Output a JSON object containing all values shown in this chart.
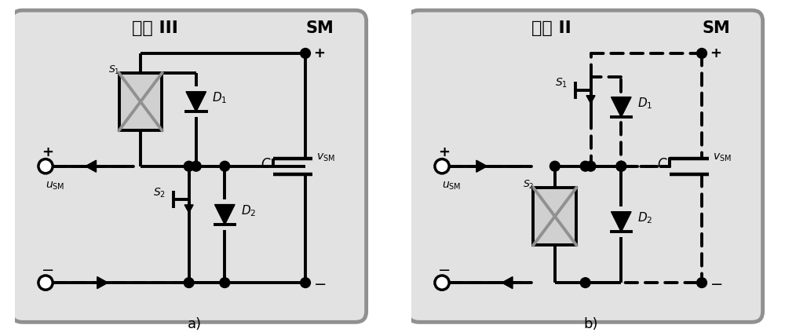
{
  "panel_bg": "#e2e2e2",
  "border_color": "#909090",
  "line_color": "#000000",
  "gray_x_color": "#909090",
  "broken_box_fill": "#d0d0d0",
  "title_a": "模式 III",
  "title_b": "模式 II",
  "sm_label": "SM",
  "label_a": "a)",
  "label_b": "b)",
  "fig_bg": "#ffffff"
}
